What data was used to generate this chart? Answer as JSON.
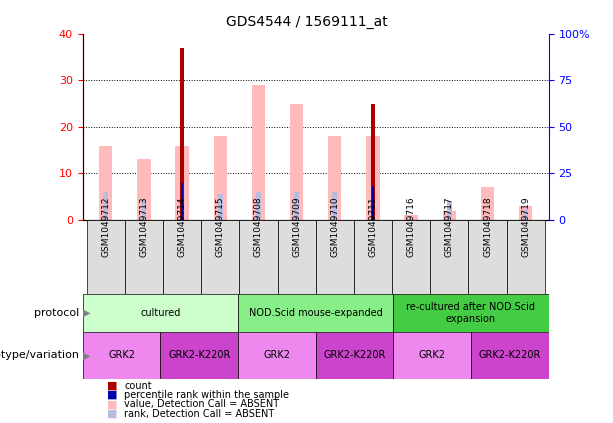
{
  "title": "GDS4544 / 1569111_at",
  "samples": [
    "GSM1049712",
    "GSM1049713",
    "GSM1049714",
    "GSM1049715",
    "GSM1049708",
    "GSM1049709",
    "GSM1049710",
    "GSM1049711",
    "GSM1049716",
    "GSM1049717",
    "GSM1049718",
    "GSM1049719"
  ],
  "count_values": [
    0,
    0,
    37,
    0,
    0,
    0,
    0,
    25,
    0,
    0,
    0,
    0
  ],
  "percentile_rank_vals": [
    null,
    null,
    20,
    null,
    null,
    null,
    null,
    18,
    null,
    null,
    null,
    null
  ],
  "value_absent": [
    16,
    13,
    16,
    18,
    29,
    25,
    18,
    18,
    1,
    2,
    7,
    3
  ],
  "rank_absent_vals": [
    15,
    11,
    15,
    14,
    15,
    15,
    15,
    null,
    null,
    10,
    null,
    6
  ],
  "ylim_left": [
    0,
    40
  ],
  "ylim_right": [
    0,
    100
  ],
  "yticks_left": [
    0,
    10,
    20,
    30,
    40
  ],
  "yticks_right": [
    0,
    25,
    50,
    75,
    100
  ],
  "color_count": "#aa0000",
  "color_percentile": "#0000aa",
  "color_value_absent": "#ffbbbb",
  "color_rank_absent": "#bbbbdd",
  "protocol_groups": [
    {
      "label": "cultured",
      "start": 0,
      "end": 4,
      "color": "#ccffcc"
    },
    {
      "label": "NOD.Scid mouse-expanded",
      "start": 4,
      "end": 8,
      "color": "#88ee88"
    },
    {
      "label": "re-cultured after NOD.Scid\nexpansion",
      "start": 8,
      "end": 12,
      "color": "#44cc44"
    }
  ],
  "genotype_groups": [
    {
      "label": "GRK2",
      "start": 0,
      "end": 2,
      "color": "#ee88ee"
    },
    {
      "label": "GRK2-K220R",
      "start": 2,
      "end": 4,
      "color": "#cc44cc"
    },
    {
      "label": "GRK2",
      "start": 4,
      "end": 6,
      "color": "#ee88ee"
    },
    {
      "label": "GRK2-K220R",
      "start": 6,
      "end": 8,
      "color": "#cc44cc"
    },
    {
      "label": "GRK2",
      "start": 8,
      "end": 10,
      "color": "#ee88ee"
    },
    {
      "label": "GRK2-K220R",
      "start": 10,
      "end": 12,
      "color": "#cc44cc"
    }
  ],
  "label_protocol": "protocol",
  "label_genotype": "genotype/variation",
  "legend_items": [
    {
      "label": "count",
      "color": "#aa0000"
    },
    {
      "label": "percentile rank within the sample",
      "color": "#0000aa"
    },
    {
      "label": "value, Detection Call = ABSENT",
      "color": "#ffbbbb"
    },
    {
      "label": "rank, Detection Call = ABSENT",
      "color": "#bbbbdd"
    }
  ]
}
